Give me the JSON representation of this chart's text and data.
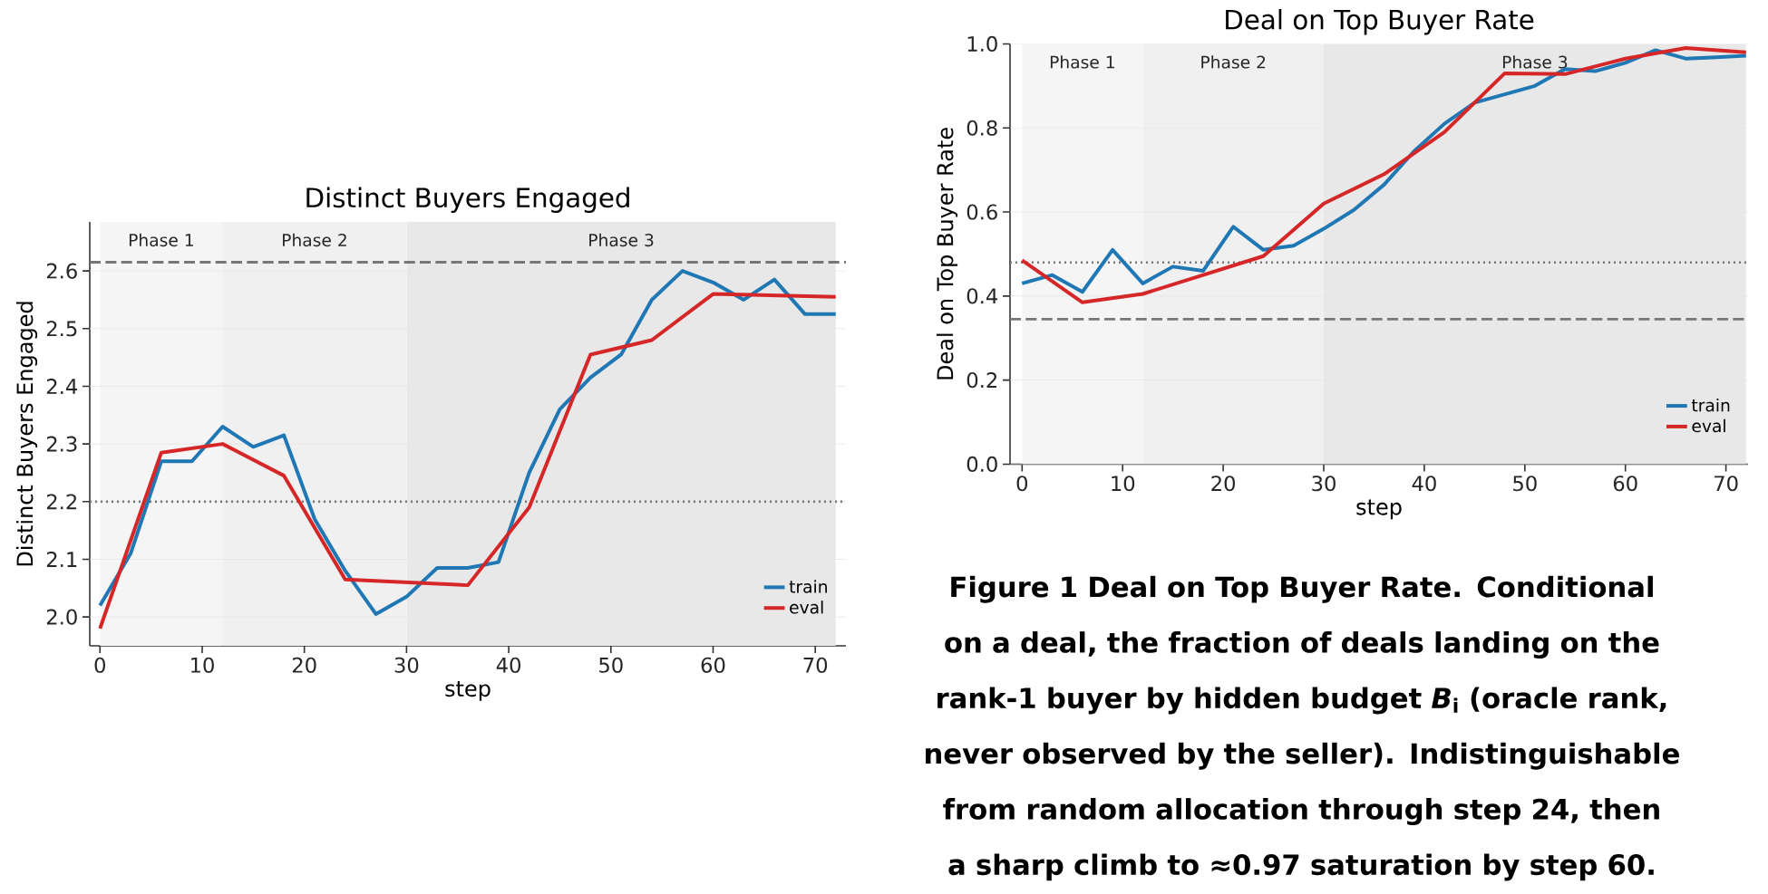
{
  "chart_data": [
    {
      "type": "line",
      "title": "Distinct Buyers Engaged",
      "xlabel": "step",
      "ylabel": "Distinct Buyers Engaged",
      "series": [
        {
          "name": "train",
          "color": "#1f77b4",
          "x": [
            0,
            3,
            6,
            9,
            12,
            15,
            18,
            21,
            24,
            27,
            30,
            33,
            36,
            39,
            42,
            45,
            48,
            51,
            54,
            57,
            60,
            63,
            66,
            69,
            72
          ],
          "values": [
            2.02,
            2.11,
            2.27,
            2.27,
            2.33,
            2.295,
            2.315,
            2.17,
            2.08,
            2.005,
            2.035,
            2.085,
            2.085,
            2.095,
            2.25,
            2.36,
            2.415,
            2.455,
            2.55,
            2.6,
            2.58,
            2.55,
            2.585,
            2.525,
            2.525
          ]
        },
        {
          "name": "eval",
          "color": "#d62728",
          "x": [
            0,
            6,
            12,
            18,
            24,
            30,
            36,
            42,
            48,
            54,
            60,
            72
          ],
          "values": [
            1.98,
            2.285,
            2.3,
            2.245,
            2.065,
            2.06,
            2.055,
            2.19,
            2.455,
            2.48,
            2.56,
            2.555
          ]
        }
      ],
      "xlim": [
        -1,
        73
      ],
      "ylim": [
        1.95,
        2.685
      ],
      "xticks": [
        0,
        10,
        20,
        30,
        40,
        50,
        60,
        70
      ],
      "yticks": [
        {
          "value": 2,
          "label": "2.0"
        },
        2.1,
        2.2,
        2.3,
        2.4,
        2.5,
        2.6
      ],
      "ref_lines": [
        {
          "axis": "y",
          "value": 2.2,
          "color": "#777777",
          "line_style": "dotted"
        },
        {
          "axis": "y",
          "value": 2.615,
          "color": "#777777",
          "line_style": "dashed"
        }
      ],
      "bands": [
        {
          "axis": "x",
          "from": 0,
          "to": 12,
          "label": "Phase 1",
          "color": "#f5f5f5"
        },
        {
          "axis": "x",
          "from": 12,
          "to": 30,
          "label": "Phase 2",
          "color": "#f0f0f0"
        },
        {
          "axis": "x",
          "from": 30,
          "to": 72,
          "label": "Phase 3",
          "color": "#e8e8e8"
        }
      ],
      "grid": "y",
      "legend": "bottom right"
    },
    {
      "type": "line",
      "title": "Deal on Top Buyer Rate",
      "xlabel": "step",
      "ylabel": "Deal on Top Buyer Rate",
      "series": [
        {
          "name": "train",
          "color": "#1f77b4",
          "x": [
            0,
            3,
            6,
            9,
            12,
            15,
            18,
            21,
            24,
            27,
            30,
            33,
            36,
            39,
            42,
            45,
            48,
            51,
            54,
            57,
            60,
            63,
            66,
            69,
            72
          ],
          "values": [
            0.43,
            0.45,
            0.41,
            0.51,
            0.43,
            0.47,
            0.46,
            0.565,
            0.51,
            0.52,
            0.56,
            0.605,
            0.665,
            0.745,
            0.81,
            0.86,
            0.88,
            0.9,
            0.94,
            0.935,
            0.955,
            0.985,
            0.965,
            0.968,
            0.972
          ]
        },
        {
          "name": "eval",
          "color": "#d62728",
          "x": [
            0,
            6,
            12,
            18,
            24,
            30,
            36,
            42,
            48,
            54,
            60,
            66,
            72
          ],
          "values": [
            0.485,
            0.385,
            0.405,
            0.45,
            0.495,
            0.62,
            0.69,
            0.79,
            0.93,
            0.928,
            0.965,
            0.99,
            0.98
          ]
        }
      ],
      "xlim": [
        -1.2,
        72.2
      ],
      "ylim": [
        0,
        1
      ],
      "xticks": [
        0,
        10,
        20,
        30,
        40,
        50,
        60,
        70
      ],
      "yticks": [
        {
          "value": 0,
          "label": "0.0"
        },
        0.2,
        0.4,
        0.6,
        0.8,
        {
          "value": 1,
          "label": "1.0"
        }
      ],
      "ref_lines": [
        {
          "axis": "y",
          "value": 0.48,
          "color": "#777777",
          "line_style": "dotted"
        },
        {
          "axis": "y",
          "value": 0.345,
          "color": "#777777",
          "line_style": "dashed"
        }
      ],
      "bands": [
        {
          "axis": "x",
          "from": 0,
          "to": 12,
          "label": "Phase 1",
          "color": "#f5f5f5"
        },
        {
          "axis": "x",
          "from": 12,
          "to": 30,
          "label": "Phase 2",
          "color": "#f0f0f0"
        },
        {
          "axis": "x",
          "from": 30,
          "to": 72,
          "label": "Phase 3",
          "color": "#e8e8e8"
        }
      ],
      "grid": "y",
      "legend": "bottom right",
      "annotations": [
        "Figure 1 Deal on Top Buyer Rate. Conditional on a deal, the fraction of deals landing on the rank-1 buyer by hidden budget *B*$_{i}$ (oracle rank, never observed by the seller). Indistinguishable from random allocation through step 24, then a sharp climb to ≈0.97 saturation by step 60."
      ]
    }
  ]
}
